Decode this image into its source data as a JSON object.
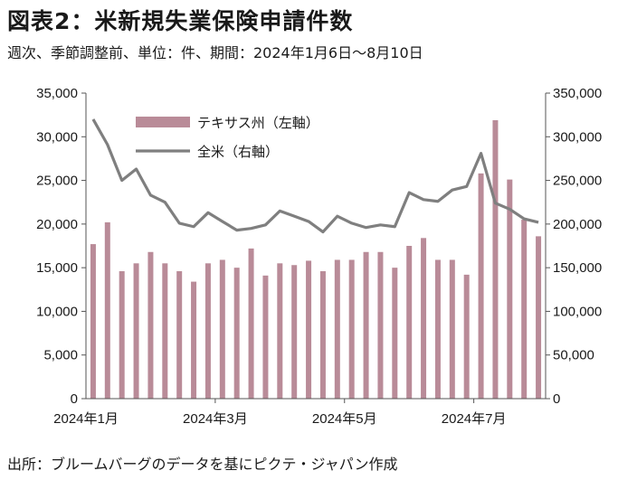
{
  "header": {
    "title": "図表2：米新規失業保険申請件数",
    "subtitle": "週次、季節調整前、単位：件、期間：2024年1月6日～8月10日"
  },
  "footer": {
    "source": "出所：ブルームバーグのデータを基にピクテ・ジャパン作成"
  },
  "colors": {
    "bar": "#b98b98",
    "line": "#7f7f7f",
    "axis": "#555555"
  },
  "chart_data": {
    "type": "bar",
    "x_ticks": [
      "2024年1月",
      "2024年3月",
      "2024年5月",
      "2024年7月"
    ],
    "x_tick_index": [
      0,
      9,
      18,
      27
    ],
    "y_left": {
      "min": 0,
      "max": 35000,
      "ticks": [
        "0",
        "5,000",
        "10,000",
        "15,000",
        "20,000",
        "25,000",
        "30,000",
        "35,000"
      ]
    },
    "y_right": {
      "min": 0,
      "max": 350000,
      "ticks": [
        "0",
        "50,000",
        "100,000",
        "150,000",
        "200,000",
        "250,000",
        "300,000",
        "350,000"
      ]
    },
    "legend_position": "top-left",
    "series": [
      {
        "name": "テキサス州（左軸）",
        "kind": "bar",
        "axis": "left",
        "values": [
          17700,
          20200,
          14600,
          15500,
          16800,
          15500,
          14600,
          13400,
          15500,
          15900,
          15000,
          17200,
          14100,
          15500,
          15300,
          15800,
          14600,
          15900,
          15900,
          16800,
          16800,
          15000,
          17500,
          18400,
          15900,
          15900,
          14200,
          25800,
          31900,
          25100,
          20500,
          18600
        ]
      },
      {
        "name": "全米（右軸）",
        "kind": "line",
        "axis": "right",
        "values": [
          320000,
          291000,
          250000,
          263000,
          233000,
          225000,
          201000,
          197000,
          213000,
          203000,
          193000,
          195000,
          199000,
          215000,
          209000,
          203000,
          191000,
          209000,
          201000,
          196000,
          199000,
          197000,
          236000,
          228000,
          226000,
          239000,
          243000,
          281000,
          224000,
          217000,
          206000,
          202000
        ]
      }
    ]
  }
}
